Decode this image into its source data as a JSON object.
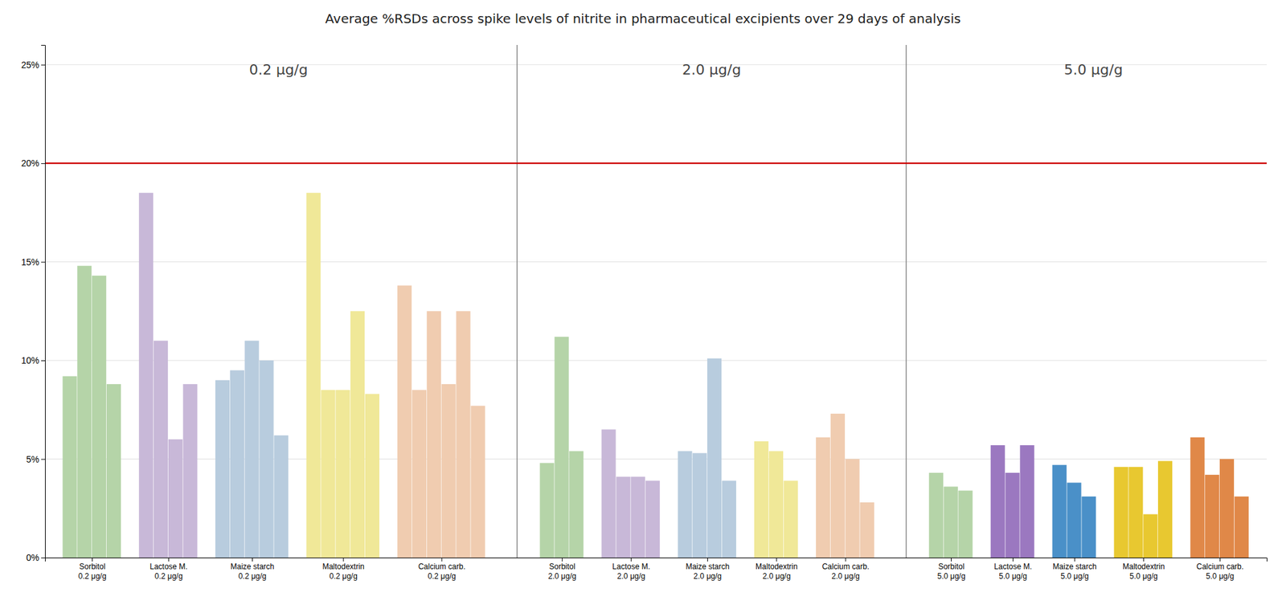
{
  "chart_data": {
    "type": "bar",
    "title": "Average %RSDs across spike levels of nitrite in pharmaceutical excipients over 29 days of analysis",
    "categories": [
      "Sorbitol\n0.2 μg/g",
      "Lactose M.\n0.2 μg/g",
      "Maize starch\n0.2 μg/g",
      "Maltodextrin\n0.2 μg/g",
      "Calcium carb.\n0.2 μg/g",
      "Sorbitol\n2.0 μg/g",
      "Lactose M.\n2.0 μg/g",
      "Maize starch\n2.0 μg/g",
      "Maltodextrin\n2.0 μg/g",
      "Calcium carb.\n2.0 μg/g",
      "Sorbitol\n5.0 μg/g",
      "Lactose M.\n5.0 μg/g",
      "Maize starch\n5.0 μg/g",
      "Maltodextrin\n5.0 μg/g",
      "Calcium carb.\n5.0 μg/g"
    ],
    "values": [
      [
        0.092,
        0.148,
        0.143,
        0.088
      ],
      [
        0.185,
        0.11,
        0.06,
        0.088
      ],
      [
        0.09,
        0.095,
        0.11,
        0.1,
        0.062
      ],
      [
        0.185,
        0.085,
        0.085,
        0.125,
        0.083
      ],
      [
        0.138,
        0.085,
        0.125,
        0.088,
        0.125,
        0.077
      ],
      [
        0.048,
        0.112,
        0.054
      ],
      [
        0.065,
        0.041,
        0.041,
        0.039
      ],
      [
        0.054,
        0.053,
        0.101,
        0.039
      ],
      [
        0.059,
        0.054,
        0.039
      ],
      [
        0.061,
        0.073,
        0.05,
        0.028
      ],
      [
        0.043,
        0.036,
        0.034
      ],
      [
        0.057,
        0.043,
        0.057
      ],
      [
        0.047,
        0.038,
        0.031
      ],
      [
        0.046,
        0.046,
        0.022,
        0.049
      ],
      [
        0.061,
        0.042,
        0.05,
        0.031
      ]
    ],
    "colors": [
      "#b5d4a8",
      "#c8b8d8",
      "#b8ccde",
      "#f0e898",
      "#f0ccb0",
      "#b5d4a8",
      "#c8b8d8",
      "#b8ccde",
      "#f0e898",
      "#f0ccb0",
      "#b5d4a8",
      "#9b78c0",
      "#4a90c8",
      "#e8c830",
      "#e08848"
    ],
    "sections": [
      {
        "label": "0.2 μg/g",
        "categories": [
          0,
          1,
          2,
          3,
          4
        ]
      },
      {
        "label": "2.0 μg/g",
        "categories": [
          5,
          6,
          7,
          8,
          9
        ]
      },
      {
        "label": "5.0 μg/g",
        "categories": [
          10,
          11,
          12,
          13,
          14
        ]
      }
    ],
    "reference_lines": [
      {
        "value": 0.2,
        "color": "#cc0000"
      }
    ],
    "ylim": [
      0,
      0.26
    ],
    "yticks": [
      {
        "value": 0.0,
        "label": "0%"
      },
      {
        "value": 0.05,
        "label": "5%"
      },
      {
        "value": 0.1,
        "label": "10%"
      },
      {
        "value": 0.15,
        "label": "15%"
      },
      {
        "value": 0.2,
        "label": "20%"
      },
      {
        "value": 0.25,
        "label": "25%"
      }
    ],
    "grid": true
  }
}
